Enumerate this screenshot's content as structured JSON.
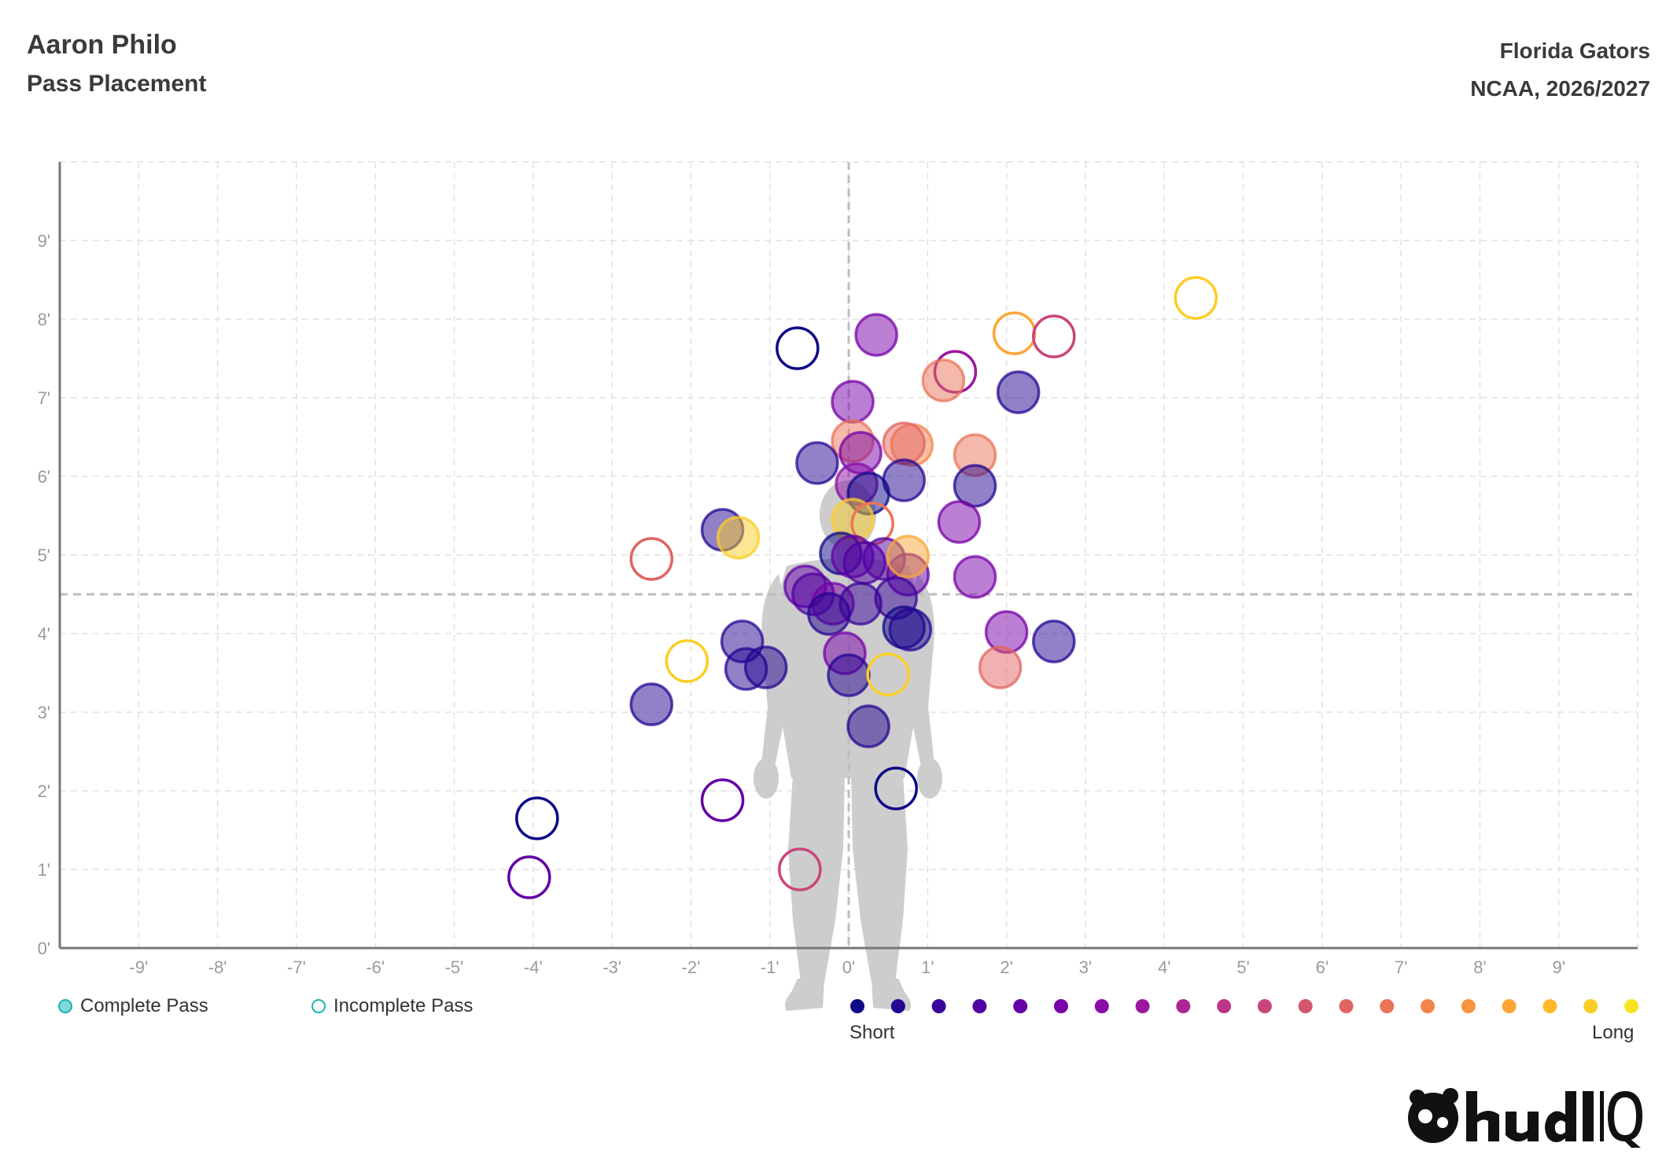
{
  "header": {
    "player": "Aaron Philo",
    "subtitle": "Pass Placement",
    "team": "Florida Gators",
    "season": "NCAA, 2026/2027"
  },
  "legend": {
    "complete_label": "Complete Pass",
    "incomplete_label": "Incomplete Pass",
    "short_label": "Short",
    "long_label": "Long",
    "scale_colors": [
      "#0d0887",
      "#240691",
      "#3a049a",
      "#5002a2",
      "#6300a7",
      "#7701a8",
      "#8a0da5",
      "#9c179e",
      "#ac2694",
      "#bc3587",
      "#ca457a",
      "#d5546e",
      "#e16462",
      "#ea7457",
      "#f2844b",
      "#f89540",
      "#fca636",
      "#feba2c",
      "#fcce25",
      "#f7e225"
    ]
  },
  "brand": {
    "logo_name": "hudl-iq-logo"
  },
  "chart_data": {
    "type": "scatter",
    "xlim": [
      -10,
      10
    ],
    "ylim": [
      0,
      10
    ],
    "x_ticks": [
      "-9'",
      "-8'",
      "-7'",
      "-6'",
      "-5'",
      "-4'",
      "-3'",
      "-2'",
      "-1'",
      "0'",
      "1'",
      "2'",
      "3'",
      "4'",
      "5'",
      "6'",
      "7'",
      "8'",
      "9'"
    ],
    "x_tick_values": [
      -9,
      -8,
      -7,
      -6,
      -5,
      -4,
      -3,
      -2,
      -1,
      0,
      1,
      2,
      3,
      4,
      5,
      6,
      7,
      8,
      9
    ],
    "y_ticks": [
      "0'",
      "1'",
      "2'",
      "3'",
      "4'",
      "5'",
      "6'",
      "7'",
      "8'",
      "9'"
    ],
    "y_tick_values": [
      0,
      1,
      2,
      3,
      4,
      5,
      6,
      7,
      8,
      9
    ],
    "grid": true,
    "ref_lines": {
      "x": 0,
      "y": 4.5
    },
    "points": [
      {
        "x": 4.4,
        "y": 8.27,
        "complete": false,
        "color": "#fcce25"
      },
      {
        "x": 2.1,
        "y": 7.82,
        "complete": false,
        "color": "#fca636"
      },
      {
        "x": 2.6,
        "y": 7.78,
        "complete": false,
        "color": "#ca457a"
      },
      {
        "x": -0.65,
        "y": 7.63,
        "complete": false,
        "color": "#0d0887"
      },
      {
        "x": 0.35,
        "y": 7.8,
        "complete": true,
        "color": "#7701a8"
      },
      {
        "x": 1.35,
        "y": 7.33,
        "complete": false,
        "color": "#9c179e"
      },
      {
        "x": 1.2,
        "y": 7.22,
        "complete": true,
        "color": "#ea7457"
      },
      {
        "x": 2.15,
        "y": 7.07,
        "complete": true,
        "color": "#240691"
      },
      {
        "x": 0.05,
        "y": 6.95,
        "complete": true,
        "color": "#7701a8"
      },
      {
        "x": 0.05,
        "y": 6.45,
        "complete": true,
        "color": "#ea7457"
      },
      {
        "x": 0.15,
        "y": 6.3,
        "complete": true,
        "color": "#7701a8"
      },
      {
        "x": 0.8,
        "y": 6.4,
        "complete": true,
        "color": "#f2844b"
      },
      {
        "x": 0.7,
        "y": 6.42,
        "complete": true,
        "color": "#e16462"
      },
      {
        "x": 1.6,
        "y": 6.27,
        "complete": true,
        "color": "#ea7457"
      },
      {
        "x": -0.4,
        "y": 6.17,
        "complete": true,
        "color": "#240691"
      },
      {
        "x": 0.7,
        "y": 5.95,
        "complete": true,
        "color": "#240691"
      },
      {
        "x": 0.1,
        "y": 5.9,
        "complete": true,
        "color": "#8a0da5"
      },
      {
        "x": 0.25,
        "y": 5.78,
        "complete": true,
        "color": "#0d0887"
      },
      {
        "x": 1.6,
        "y": 5.88,
        "complete": true,
        "color": "#240691"
      },
      {
        "x": -1.6,
        "y": 5.32,
        "complete": true,
        "color": "#240691"
      },
      {
        "x": -1.4,
        "y": 5.22,
        "complete": true,
        "color": "#fcce25"
      },
      {
        "x": 0.05,
        "y": 5.45,
        "complete": true,
        "color": "#fcce25"
      },
      {
        "x": 0.3,
        "y": 5.4,
        "complete": false,
        "color": "#ea7457"
      },
      {
        "x": 1.4,
        "y": 5.42,
        "complete": true,
        "color": "#7701a8"
      },
      {
        "x": -2.5,
        "y": 4.95,
        "complete": false,
        "color": "#e16462"
      },
      {
        "x": -0.1,
        "y": 5.02,
        "complete": true,
        "color": "#0d0887"
      },
      {
        "x": 0.05,
        "y": 4.98,
        "complete": true,
        "color": "#6300a7"
      },
      {
        "x": 0.2,
        "y": 4.9,
        "complete": true,
        "color": "#5002a2"
      },
      {
        "x": 0.45,
        "y": 4.95,
        "complete": true,
        "color": "#5002a2"
      },
      {
        "x": 0.75,
        "y": 4.75,
        "complete": true,
        "color": "#6300a7"
      },
      {
        "x": 0.75,
        "y": 4.98,
        "complete": true,
        "color": "#fca636"
      },
      {
        "x": 1.6,
        "y": 4.72,
        "complete": true,
        "color": "#7701a8"
      },
      {
        "x": -0.55,
        "y": 4.6,
        "complete": true,
        "color": "#6300a7"
      },
      {
        "x": -0.45,
        "y": 4.5,
        "complete": true,
        "color": "#5002a2"
      },
      {
        "x": -0.2,
        "y": 4.38,
        "complete": true,
        "color": "#7701a8"
      },
      {
        "x": -0.25,
        "y": 4.25,
        "complete": true,
        "color": "#240691"
      },
      {
        "x": 0.15,
        "y": 4.38,
        "complete": true,
        "color": "#3a049a"
      },
      {
        "x": 0.6,
        "y": 4.45,
        "complete": true,
        "color": "#3a049a"
      },
      {
        "x": 0.7,
        "y": 4.08,
        "complete": true,
        "color": "#0d0887"
      },
      {
        "x": 0.78,
        "y": 4.05,
        "complete": true,
        "color": "#240691"
      },
      {
        "x": 2.0,
        "y": 4.02,
        "complete": true,
        "color": "#7701a8"
      },
      {
        "x": 2.6,
        "y": 3.9,
        "complete": true,
        "color": "#240691"
      },
      {
        "x": -1.35,
        "y": 3.9,
        "complete": true,
        "color": "#240691"
      },
      {
        "x": -1.3,
        "y": 3.55,
        "complete": true,
        "color": "#240691"
      },
      {
        "x": -1.05,
        "y": 3.57,
        "complete": true,
        "color": "#240691"
      },
      {
        "x": -0.05,
        "y": 3.75,
        "complete": true,
        "color": "#7701a8"
      },
      {
        "x": 0.0,
        "y": 3.47,
        "complete": true,
        "color": "#240691"
      },
      {
        "x": 0.5,
        "y": 3.48,
        "complete": false,
        "color": "#fcce25"
      },
      {
        "x": -2.05,
        "y": 3.65,
        "complete": false,
        "color": "#fcce25"
      },
      {
        "x": 1.92,
        "y": 3.57,
        "complete": true,
        "color": "#e16462"
      },
      {
        "x": -2.5,
        "y": 3.1,
        "complete": true,
        "color": "#240691"
      },
      {
        "x": 0.25,
        "y": 2.82,
        "complete": true,
        "color": "#240691"
      },
      {
        "x": 0.6,
        "y": 2.03,
        "complete": false,
        "color": "#0d0887"
      },
      {
        "x": -1.6,
        "y": 1.88,
        "complete": false,
        "color": "#6300a7"
      },
      {
        "x": -3.95,
        "y": 1.65,
        "complete": false,
        "color": "#0d0887"
      },
      {
        "x": -4.05,
        "y": 0.9,
        "complete": false,
        "color": "#6300a7"
      },
      {
        "x": -0.62,
        "y": 1.0,
        "complete": false,
        "color": "#ca457a"
      }
    ]
  }
}
